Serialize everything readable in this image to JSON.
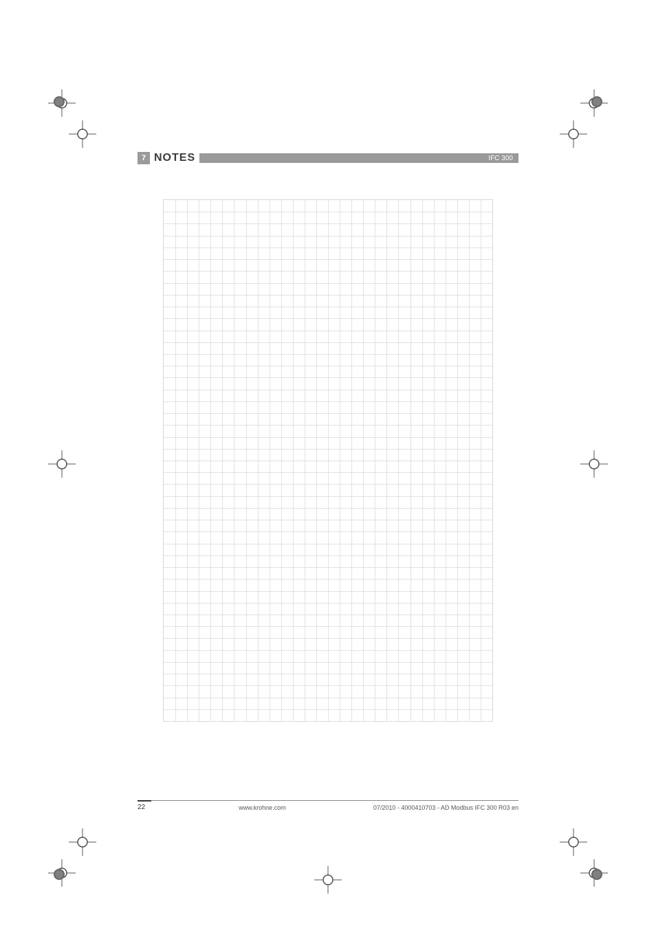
{
  "header": {
    "section_number": "7",
    "section_title": "NOTES",
    "product": "IFC 300"
  },
  "grid": {
    "cols": 28,
    "rows": 44,
    "line_color": "#e2e2e2",
    "border_color": "#d8d8d8",
    "background": "#ffffff"
  },
  "footer": {
    "page_number": "22",
    "center": "www.krohne.com",
    "right": "07/2010 - 4000410703 - AD Modbus IFC 300 R03 en"
  },
  "colors": {
    "header_bar": "#9a9a9a",
    "text_dark": "#3a3a3a",
    "text_light": "#ffffff"
  }
}
